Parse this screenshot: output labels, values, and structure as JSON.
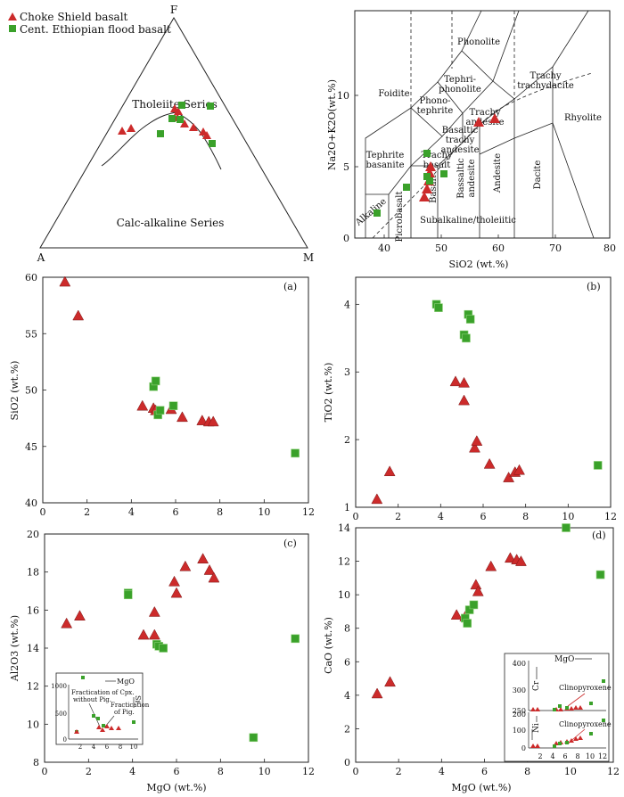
{
  "legend": {
    "choke": "Choke Shield basalt",
    "ethio": "Cent. Ethiopian flood basalt"
  },
  "colors": {
    "triangle": "#cc2b2b",
    "square": "#3aa12a",
    "axis": "#222222"
  },
  "afm": {
    "apex_top": "F",
    "apex_left": "A",
    "apex_right": "M",
    "tholeiite_label": "Tholeiite Series",
    "calcalk_label": "Calc-alkaline Series"
  },
  "tas": {
    "xlabel": "SiO2 (wt.%)",
    "ylabel": "Na2O+K2O(wt.%)",
    "xticks": [
      40,
      50,
      60,
      70,
      80
    ],
    "yticks": [
      0,
      5,
      10
    ],
    "fields": {
      "foidite": "Foidite",
      "phonolite": "Phonolite",
      "tephri1": "Tephri-",
      "tephri2": "phonolite",
      "phono1": "Phono-",
      "phono2": "tephrite",
      "trachy1": "Trachy",
      "trachy2": "trachydacite",
      "tand1": "Trachy",
      "tand2": "andesite",
      "tephbas1": "Tephrite",
      "tephbas2": "basanite",
      "btand1": "Basaltic",
      "btand2": "trachy",
      "btand3": "andesite",
      "tbas1": "Trachy",
      "tbas2": "basalt",
      "alkaline": "Alkaline",
      "picro": "Picrobasalt",
      "basalt": "Basalt",
      "band1": "Bassaltic",
      "band2": "andesite",
      "andesite": "Andesite",
      "dacite": "Dacite",
      "rhyolite": "Rhyolite",
      "subalk": "Subalkaline/tholeiitic"
    }
  },
  "panels": {
    "a": {
      "letter": "(a)",
      "ylabel": "SiO2 (wt.%)",
      "yticks": [
        40,
        45,
        50,
        55,
        60
      ],
      "xticks": [
        0,
        2,
        4,
        6,
        8,
        10,
        12
      ]
    },
    "b": {
      "letter": "(b)",
      "ylabel": "TiO2 (wt.%)",
      "yticks": [
        1,
        2,
        3,
        4
      ],
      "xticks": [
        0,
        2,
        4,
        6,
        8,
        10,
        12
      ]
    },
    "c": {
      "letter": "(c)",
      "ylabel": "Al2O3 (wt.%)",
      "xlabel": "MgO (wt.%)",
      "yticks": [
        8,
        10,
        12,
        14,
        16,
        18,
        20
      ],
      "xticks": [
        0,
        2,
        4,
        6,
        8,
        10,
        12
      ]
    },
    "d": {
      "letter": "(d)",
      "ylabel": "CaO (wt.%)",
      "xlabel": "MgO (wt.%)",
      "yticks": [
        0,
        2,
        4,
        6,
        8,
        10,
        12,
        14
      ],
      "xticks": [
        0,
        2,
        4,
        6,
        8,
        10,
        12
      ]
    }
  },
  "inset_c": {
    "mgo": "MgO",
    "sr": "Sr",
    "ann1a": "Fractication of Cpx.",
    "ann1b": "without Pig.",
    "ann2a": "Fractication",
    "ann2b": "of Pig.",
    "yticks": [
      0,
      500,
      1000
    ],
    "ytick_labels": [
      "0",
      "500",
      "1000"
    ],
    "xticks": [
      0,
      2,
      4,
      6,
      8,
      10
    ]
  },
  "inset_d": {
    "mgo": "MgO",
    "cr": "Cr",
    "ni": "Ni",
    "cpx": "Clinopyroxene",
    "cr_yticks": [
      250,
      300,
      400
    ],
    "ni_yticks": [
      0,
      100,
      200
    ],
    "xticks": [
      2,
      4,
      6,
      8,
      10,
      12
    ]
  },
  "chart_data": [
    {
      "type": "scatter",
      "title": "",
      "xlabel": "MgO (wt.%)",
      "ylabel": "SiO2 (wt.%)",
      "xlim": [
        0,
        12
      ],
      "ylim": [
        40,
        60
      ],
      "series": [
        {
          "name": "Choke Shield basalt",
          "x": [
            1.0,
            1.6,
            4.5,
            5.0,
            5.8,
            6.3,
            7.2,
            7.5,
            7.7,
            5.1
          ],
          "y": [
            59.6,
            56.6,
            48.6,
            48.4,
            48.3,
            47.6,
            47.3,
            47.2,
            47.2,
            48.2
          ]
        },
        {
          "name": "Cent. Ethiopian flood basalt",
          "x": [
            5.0,
            5.1,
            5.2,
            5.3,
            11.4,
            5.9
          ],
          "y": [
            50.3,
            50.8,
            47.8,
            48.2,
            44.4,
            48.6
          ]
        }
      ]
    },
    {
      "type": "scatter",
      "title": "",
      "xlabel": "MgO (wt.%)",
      "ylabel": "TiO2 (wt.%)",
      "xlim": [
        0,
        12
      ],
      "ylim": [
        1,
        4.4
      ],
      "series": [
        {
          "name": "Choke Shield basalt",
          "x": [
            1.0,
            1.6,
            4.7,
            5.1,
            5.1,
            5.6,
            5.7,
            6.3,
            7.2,
            7.5,
            7.7
          ],
          "y": [
            1.12,
            1.53,
            2.86,
            2.84,
            2.58,
            1.88,
            1.98,
            1.64,
            1.44,
            1.52,
            1.55
          ]
        },
        {
          "name": "Cent. Ethiopian flood basalt",
          "x": [
            3.8,
            3.9,
            5.1,
            5.2,
            5.3,
            5.4,
            11.4
          ],
          "y": [
            4.0,
            3.95,
            3.55,
            3.5,
            3.85,
            3.78,
            1.62
          ]
        }
      ]
    },
    {
      "type": "scatter",
      "title": "",
      "xlabel": "MgO (wt.%)",
      "ylabel": "Al2O3 (wt.%)",
      "xlim": [
        0,
        12
      ],
      "ylim": [
        8,
        20
      ],
      "series": [
        {
          "name": "Choke Shield basalt",
          "x": [
            1.0,
            1.6,
            4.5,
            5.0,
            5.0,
            5.9,
            6.0,
            6.4,
            7.2,
            7.5,
            7.7
          ],
          "y": [
            15.3,
            15.7,
            14.7,
            15.9,
            14.7,
            17.5,
            16.9,
            18.3,
            18.7,
            18.1,
            17.7
          ]
        },
        {
          "name": "Cent. Ethiopian flood basalt",
          "x": [
            3.8,
            3.8,
            5.1,
            5.2,
            5.4,
            9.5,
            11.4
          ],
          "y": [
            16.9,
            16.8,
            14.2,
            14.1,
            14.0,
            9.3,
            14.5
          ]
        }
      ]
    },
    {
      "type": "scatter",
      "title": "",
      "xlabel": "MgO (wt.%)",
      "ylabel": "CaO (wt.%)",
      "xlim": [
        0,
        12
      ],
      "ylim": [
        0,
        14
      ],
      "series": [
        {
          "name": "Choke Shield basalt",
          "x": [
            1.0,
            1.6,
            4.7,
            5.1,
            5.6,
            5.7,
            6.3,
            7.2,
            7.5,
            7.7
          ],
          "y": [
            4.1,
            4.8,
            8.8,
            8.7,
            10.6,
            10.2,
            11.7,
            12.2,
            12.1,
            12.0
          ]
        },
        {
          "name": "Cent. Ethiopian flood basalt",
          "x": [
            5.1,
            5.2,
            5.3,
            5.5,
            9.8,
            11.4
          ],
          "y": [
            8.6,
            8.3,
            9.1,
            9.4,
            14.0,
            11.2
          ]
        }
      ]
    }
  ]
}
